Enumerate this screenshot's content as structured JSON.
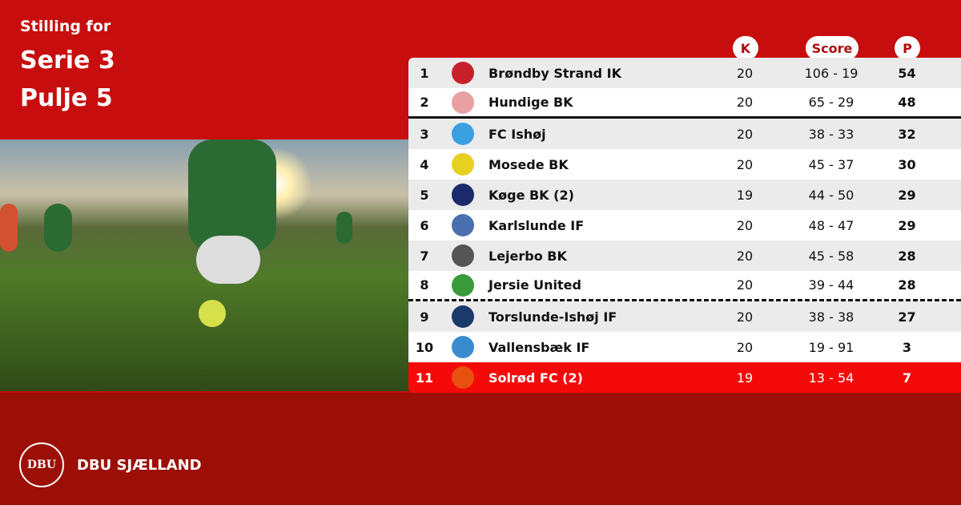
{
  "header": {
    "line1": "Stilling for",
    "line2": "Serie 3",
    "line3": "Pulje 5"
  },
  "columns": {
    "k": "K",
    "score": "Score",
    "p": "P"
  },
  "colors": {
    "top_bg": "#c80d0e",
    "bottom_bg": "#9c0f07",
    "highlight_row": "#f50a0a"
  },
  "rows": [
    {
      "pos": "1",
      "team": "Brøndby Strand IK",
      "k": "20",
      "score": "106 - 19",
      "p": "54",
      "logo": "#c8202a"
    },
    {
      "pos": "2",
      "team": "Hundige BK",
      "k": "20",
      "score": "65 - 29",
      "p": "48",
      "logo": "#e8a0a0"
    },
    {
      "pos": "3",
      "team": "FC Ishøj",
      "k": "20",
      "score": "38 - 33",
      "p": "32",
      "logo": "#3aa0e0"
    },
    {
      "pos": "4",
      "team": "Mosede BK",
      "k": "20",
      "score": "45 - 37",
      "p": "30",
      "logo": "#e8d020"
    },
    {
      "pos": "5",
      "team": "Køge BK (2)",
      "k": "19",
      "score": "44 - 50",
      "p": "29",
      "logo": "#1a2a6a"
    },
    {
      "pos": "6",
      "team": "Karlslunde IF",
      "k": "20",
      "score": "48 - 47",
      "p": "29",
      "logo": "#4a70b0"
    },
    {
      "pos": "7",
      "team": "Lejerbo BK",
      "k": "20",
      "score": "45 - 58",
      "p": "28",
      "logo": "#555555"
    },
    {
      "pos": "8",
      "team": "Jersie United",
      "k": "20",
      "score": "39 - 44",
      "p": "28",
      "logo": "#3a9a3a"
    },
    {
      "pos": "9",
      "team": "Torslunde-Ishøj IF",
      "k": "20",
      "score": "38 - 38",
      "p": "27",
      "logo": "#1a3a6a"
    },
    {
      "pos": "10",
      "team": "Vallensbæk IF",
      "k": "20",
      "score": "19 - 91",
      "p": "3",
      "logo": "#3a8ad0"
    },
    {
      "pos": "11",
      "team": "Solrød FC (2)",
      "k": "19",
      "score": "13 - 54",
      "p": "7",
      "logo": "#e85010"
    }
  ],
  "footer": {
    "seal": "DBU",
    "brand": "DBU SJÆLLAND"
  }
}
